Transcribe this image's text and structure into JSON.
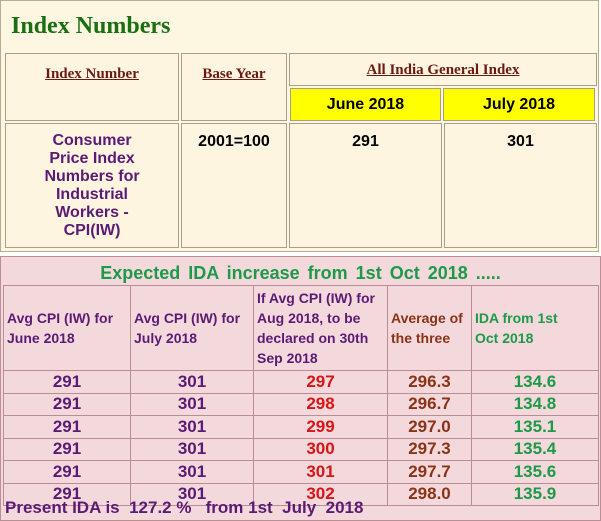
{
  "title": "Index Numbers",
  "index_table": {
    "headers": {
      "index_number": "Index Number",
      "base_year": "Base Year",
      "all_india": "All India General Index",
      "month1": "June 2018",
      "month2": "July 2018"
    },
    "row": {
      "name_lines": [
        "Consumer",
        "Price Index",
        "Numbers for",
        "Industrial",
        "Workers -",
        "CPI(IW)"
      ],
      "base_year": "2001=100",
      "month1_value": "291",
      "month2_value": "301"
    }
  },
  "ida": {
    "heading": "Expected  IDA increase from  1st  Oct  2018  .....",
    "columns": [
      [
        "Avg CPI (IW) for",
        "June 2018"
      ],
      [
        "Avg CPI (IW) for",
        "July 2018"
      ],
      [
        "If Avg CPI (IW) for",
        "Aug 2018, to be",
        "declared on 30th",
        "Sep 2018"
      ],
      [
        "Average of",
        "the three"
      ],
      [
        "IDA from 1st",
        "Oct 2018"
      ]
    ],
    "rows": [
      [
        "291",
        "301",
        "297",
        "296.3",
        "134.6"
      ],
      [
        "291",
        "301",
        "298",
        "296.7",
        "134.8"
      ],
      [
        "291",
        "301",
        "299",
        "297.0",
        "135.1"
      ],
      [
        "291",
        "301",
        "300",
        "297.3",
        "135.4"
      ],
      [
        "291",
        "301",
        "301",
        "297.7",
        "135.6"
      ],
      [
        "291",
        "301",
        "302",
        "298.0",
        "135.9"
      ]
    ],
    "footer": "Present IDA is  127.2 %   from 1st  July  2018"
  },
  "colors": {
    "title_green": "#1b6f12",
    "header_link": "#6b1a12",
    "purple": "#5b1b74",
    "red": "#d81414",
    "brown": "#8a3316",
    "green": "#1c9a48",
    "yellow": "#ffff00",
    "cream_bg": "#fdf6e1",
    "pink_bg": "#f4d9dc"
  }
}
